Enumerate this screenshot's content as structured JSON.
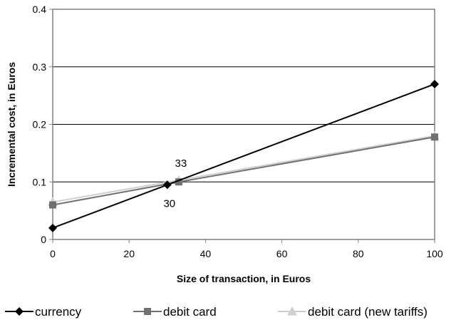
{
  "chart_data": {
    "type": "line",
    "title": "",
    "xlabel": "Size of transaction, in Euros",
    "ylabel": "Incremental cost, in Euros",
    "xlim": [
      0,
      100
    ],
    "ylim": [
      0,
      0.4
    ],
    "x_ticks": [
      0,
      20,
      40,
      60,
      80,
      100
    ],
    "y_ticks": [
      0,
      0.1,
      0.2,
      0.3,
      0.4
    ],
    "x_tick_labels": [
      "0",
      "20",
      "40",
      "60",
      "80",
      "100"
    ],
    "y_tick_labels": [
      "0",
      "0.1",
      "0.2",
      "0.3",
      "0.4"
    ],
    "grid": "horizontal",
    "legend_placement": "bottom",
    "series": [
      {
        "name": "currency",
        "color": "#000000",
        "marker": "diamond",
        "points": [
          [
            0,
            0.02
          ],
          [
            30,
            0.095
          ],
          [
            100,
            0.27
          ]
        ]
      },
      {
        "name": "debit card",
        "color": "#707070",
        "marker": "square",
        "points": [
          [
            0,
            0.06
          ],
          [
            33,
            0.1
          ],
          [
            100,
            0.178
          ]
        ]
      },
      {
        "name": "debit card (new tariffs)",
        "color": "#cfcfcf",
        "marker": "triangle",
        "points": [
          [
            0,
            0.065
          ],
          [
            33,
            0.103
          ],
          [
            100,
            0.18
          ]
        ]
      }
    ],
    "annotations": [
      {
        "text": "33",
        "x": 33,
        "y": 0.103,
        "placement": "above"
      },
      {
        "text": "30",
        "x": 30,
        "y": 0.095,
        "placement": "below"
      }
    ]
  }
}
